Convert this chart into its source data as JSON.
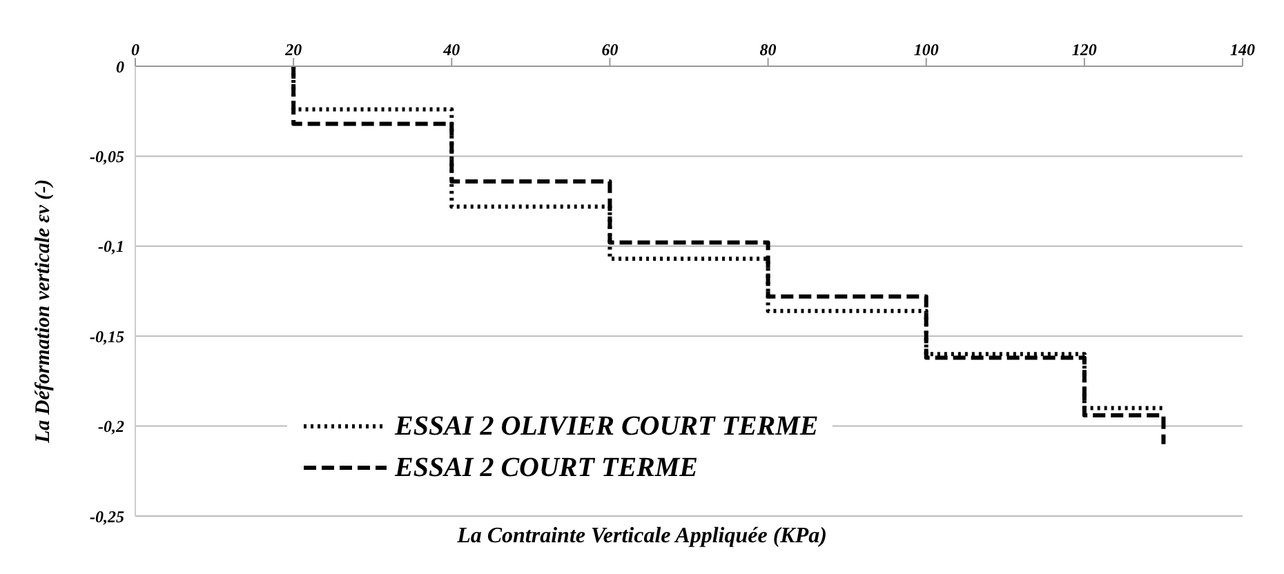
{
  "chart_data": {
    "type": "step",
    "xlabel": "La Contrainte Verticale  Appliquée  (KPa)",
    "ylabel": "La Déformation verticale εv (-)",
    "xlim": [
      0,
      140
    ],
    "xticks": [
      0,
      20,
      40,
      60,
      80,
      100,
      120,
      140
    ],
    "ylim": [
      -0.25,
      0
    ],
    "yticks": [
      {
        "value": 0,
        "label": "0"
      },
      {
        "value": -0.05,
        "label": "-0,05"
      },
      {
        "value": -0.1,
        "label": "-0,1"
      },
      {
        "value": -0.15,
        "label": "-0,15"
      },
      {
        "value": -0.2,
        "label": "-0,2"
      },
      {
        "value": -0.25,
        "label": "-0,25"
      }
    ],
    "grid": "y",
    "legend": "bottom left",
    "marker": "none",
    "series": [
      {
        "name": "ESSAI 2 OLIVIER COURT TERME",
        "color": "#000000",
        "line_style": "dotted",
        "x": [
          20,
          20,
          40,
          60,
          80,
          100,
          120,
          130
        ],
        "values": [
          0,
          -0.024,
          -0.078,
          -0.107,
          -0.136,
          -0.16,
          -0.19,
          -0.19
        ]
      },
      {
        "name": "ESSAI 2 COURT TERME",
        "color": "#000000",
        "line_style": "dashed",
        "x": [
          20,
          20,
          40,
          60,
          80,
          100,
          120,
          130,
          130
        ],
        "values": [
          0,
          -0.032,
          -0.064,
          -0.098,
          -0.128,
          -0.162,
          -0.194,
          -0.194,
          -0.21
        ]
      }
    ]
  }
}
